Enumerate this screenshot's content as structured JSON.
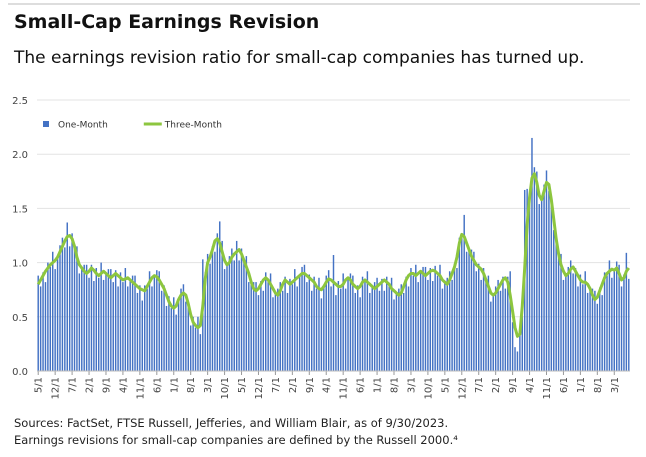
{
  "chart_data": {
    "type": "bar-line",
    "title": "Small-Cap Earnings Revision",
    "subtitle": "The earnings revision ratio for small-cap companies has turned up.",
    "notes": [
      "Sources: FactSet, FTSE Russell, Jefferies, and William Blair, as of 9/30/2023.",
      "Earnings revisions for small-cap companies are defined by the Russell 2000.⁴"
    ],
    "categories": [
      "5/1",
      null,
      null,
      null,
      null,
      null,
      null,
      "12/1",
      null,
      null,
      null,
      null,
      null,
      null,
      "7/1",
      null,
      null,
      null,
      null,
      null,
      null,
      "2/1",
      null,
      null,
      null,
      null,
      null,
      null,
      "9/1",
      null,
      null,
      null,
      null,
      null,
      null,
      "4/1",
      null,
      null,
      null,
      null,
      null,
      null,
      "11/1",
      null,
      null,
      null,
      null,
      null,
      null,
      "6/1",
      null,
      null,
      null,
      null,
      null,
      null,
      "1/1",
      null,
      null,
      null,
      null,
      null,
      null,
      "8/1",
      null,
      null,
      null,
      null,
      null,
      null,
      "3/1",
      null,
      null,
      null,
      null,
      null,
      null,
      "10/1",
      null,
      null,
      null,
      null,
      null,
      null,
      "5/1",
      null,
      null,
      null,
      null,
      null,
      null,
      "12/1",
      null,
      null,
      null,
      null,
      null,
      null,
      "7/1",
      null,
      null,
      null,
      null,
      null,
      null,
      "2/1",
      null,
      null,
      null,
      null,
      null,
      null,
      "9/1",
      null,
      null,
      null,
      null,
      null,
      null,
      "4/1",
      null,
      null,
      null,
      null,
      null,
      null,
      "11/1",
      null,
      null,
      null,
      null,
      null,
      null,
      "6/1",
      null,
      null,
      null,
      null,
      null,
      null,
      "1/1",
      null,
      null,
      null,
      null,
      null,
      null,
      "8/1",
      null,
      null,
      null,
      null,
      null,
      null,
      "3/1",
      null,
      null,
      null,
      null,
      null,
      null,
      "10/1",
      null,
      null,
      null,
      null,
      null,
      null,
      "5/1",
      null,
      null,
      null,
      null,
      null,
      null,
      "12/1",
      null,
      null,
      null,
      null,
      null,
      null,
      "7/1",
      null,
      null,
      null,
      null,
      null,
      null,
      "2/1",
      null,
      null,
      null,
      null,
      null,
      null,
      "9/1",
      null,
      null,
      null,
      null,
      null,
      null,
      "4/1",
      null,
      null,
      null,
      null,
      null,
      null,
      "11/1",
      null,
      null,
      null,
      null,
      null,
      null,
      "6/1",
      null,
      null,
      null,
      null,
      null,
      null,
      "1/1",
      null,
      null,
      null,
      null,
      null,
      null,
      "8/1",
      null,
      null,
      null,
      null,
      null,
      null,
      "3/1",
      null,
      null,
      null,
      null,
      null,
      null
    ],
    "series": [
      {
        "name": "One-Month",
        "type": "bar",
        "color": "#4472c4",
        "values": [
          0.88,
          0.78,
          0.91,
          0.82,
          1.0,
          0.96,
          1.1,
          0.94,
          1.05,
          1.16,
          1.23,
          1.14,
          1.37,
          1.15,
          1.27,
          1.13,
          1.15,
          0.9,
          0.95,
          0.98,
          0.98,
          0.86,
          0.98,
          0.83,
          0.95,
          0.86,
          1.0,
          0.84,
          0.9,
          0.94,
          0.94,
          0.82,
          0.93,
          0.78,
          0.91,
          0.82,
          0.95,
          0.78,
          0.84,
          0.88,
          0.88,
          0.72,
          0.79,
          0.65,
          0.79,
          0.76,
          0.92,
          0.78,
          0.88,
          0.93,
          0.92,
          0.74,
          0.79,
          0.6,
          0.69,
          0.58,
          0.68,
          0.52,
          0.66,
          0.76,
          0.8,
          0.64,
          0.65,
          0.42,
          0.5,
          0.4,
          0.5,
          0.34,
          1.03,
          0.91,
          1.08,
          0.99,
          1.15,
          1.1,
          1.27,
          1.38,
          1.2,
          0.94,
          0.98,
          1.06,
          1.13,
          1.02,
          1.2,
          1.02,
          1.13,
          1.0,
          1.06,
          0.82,
          0.82,
          0.82,
          0.82,
          0.7,
          0.83,
          0.74,
          0.91,
          0.82,
          0.9,
          0.68,
          0.72,
          0.76,
          0.82,
          0.74,
          0.87,
          0.72,
          0.85,
          0.8,
          0.94,
          0.78,
          0.88,
          0.96,
          0.98,
          0.82,
          0.89,
          0.74,
          0.87,
          0.76,
          0.86,
          0.67,
          0.78,
          0.88,
          0.93,
          0.78,
          1.07,
          0.7,
          0.83,
          0.76,
          0.9,
          0.76,
          0.86,
          0.9,
          0.88,
          0.72,
          0.79,
          0.68,
          0.87,
          0.82,
          0.92,
          0.72,
          0.78,
          0.82,
          0.86,
          0.74,
          0.85,
          0.74,
          0.87,
          0.78,
          0.86,
          0.66,
          0.72,
          0.76,
          0.8,
          0.72,
          0.87,
          0.78,
          0.95,
          0.88,
          0.98,
          0.82,
          0.92,
          0.96,
          0.96,
          0.84,
          0.95,
          0.83,
          0.97,
          0.88,
          0.98,
          0.76,
          0.82,
          0.86,
          0.92,
          0.84,
          0.99,
          0.95,
          1.23,
          1.24,
          1.44,
          1.1,
          1.12,
          1.12,
          1.1,
          0.92,
          0.99,
          0.84,
          0.95,
          0.82,
          0.88,
          0.64,
          0.7,
          0.78,
          0.84,
          0.74,
          0.87,
          0.76,
          0.87,
          0.92,
          0.45,
          0.22,
          0.18,
          0.4,
          0.68,
          1.67,
          1.68,
          1.6,
          2.15,
          1.88,
          1.84,
          1.54,
          1.58,
          1.72,
          1.85,
          1.66,
          1.61,
          1.3,
          1.27,
          1.06,
          1.08,
          0.84,
          0.88,
          0.96,
          1.02,
          0.9,
          0.95,
          0.78,
          0.89,
          0.8,
          0.92,
          0.72,
          0.76,
          0.76,
          0.74,
          0.62,
          0.77,
          0.7,
          0.91,
          0.88,
          1.02,
          0.86,
          0.93,
          1.01,
          0.98,
          0.78,
          0.89,
          1.09,
          0.85
        ]
      },
      {
        "name": "Three-Month",
        "type": "line",
        "color": "#8dc63f",
        "values": [
          0.8,
          0.84,
          0.88,
          0.92,
          0.95,
          0.98,
          1.0,
          1.02,
          1.05,
          1.1,
          1.15,
          1.2,
          1.24,
          1.25,
          1.22,
          1.15,
          1.05,
          0.98,
          0.95,
          0.92,
          0.9,
          0.92,
          0.95,
          0.93,
          0.9,
          0.88,
          0.9,
          0.92,
          0.9,
          0.88,
          0.86,
          0.88,
          0.9,
          0.88,
          0.86,
          0.84,
          0.85,
          0.86,
          0.84,
          0.82,
          0.8,
          0.78,
          0.76,
          0.75,
          0.74,
          0.78,
          0.82,
          0.86,
          0.88,
          0.87,
          0.84,
          0.8,
          0.76,
          0.7,
          0.64,
          0.6,
          0.58,
          0.6,
          0.66,
          0.7,
          0.72,
          0.7,
          0.62,
          0.52,
          0.45,
          0.42,
          0.4,
          0.42,
          0.6,
          0.85,
          1.0,
          1.05,
          1.12,
          1.2,
          1.22,
          1.18,
          1.1,
          1.02,
          0.98,
          1.0,
          1.05,
          1.08,
          1.1,
          1.12,
          1.08,
          1.02,
          0.96,
          0.9,
          0.82,
          0.76,
          0.74,
          0.76,
          0.8,
          0.84,
          0.86,
          0.84,
          0.8,
          0.76,
          0.72,
          0.7,
          0.74,
          0.8,
          0.84,
          0.82,
          0.8,
          0.82,
          0.84,
          0.86,
          0.88,
          0.9,
          0.9,
          0.88,
          0.86,
          0.84,
          0.82,
          0.78,
          0.76,
          0.75,
          0.78,
          0.82,
          0.85,
          0.84,
          0.82,
          0.8,
          0.78,
          0.78,
          0.8,
          0.84,
          0.86,
          0.84,
          0.8,
          0.78,
          0.76,
          0.78,
          0.82,
          0.84,
          0.82,
          0.8,
          0.78,
          0.76,
          0.78,
          0.8,
          0.82,
          0.84,
          0.82,
          0.8,
          0.76,
          0.74,
          0.72,
          0.7,
          0.72,
          0.78,
          0.84,
          0.88,
          0.9,
          0.9,
          0.88,
          0.9,
          0.92,
          0.9,
          0.88,
          0.9,
          0.92,
          0.93,
          0.92,
          0.9,
          0.88,
          0.84,
          0.82,
          0.8,
          0.84,
          0.9,
          0.96,
          1.05,
          1.18,
          1.26,
          1.24,
          1.18,
          1.12,
          1.06,
          1.02,
          0.98,
          0.96,
          0.94,
          0.9,
          0.84,
          0.78,
          0.72,
          0.7,
          0.72,
          0.76,
          0.8,
          0.84,
          0.86,
          0.82,
          0.7,
          0.55,
          0.4,
          0.32,
          0.34,
          0.6,
          0.95,
          1.35,
          1.6,
          1.78,
          1.82,
          1.74,
          1.62,
          1.58,
          1.66,
          1.74,
          1.72,
          1.58,
          1.4,
          1.22,
          1.08,
          0.98,
          0.92,
          0.88,
          0.9,
          0.94,
          0.96,
          0.92,
          0.88,
          0.84,
          0.82,
          0.82,
          0.8,
          0.76,
          0.7,
          0.66,
          0.68,
          0.74,
          0.8,
          0.86,
          0.9,
          0.92,
          0.94,
          0.93,
          0.95,
          0.9,
          0.84,
          0.86,
          0.92,
          0.95
        ]
      }
    ],
    "ylim": [
      0,
      2.5
    ],
    "yticks": [
      {
        "value": 0,
        "label": "0.0"
      },
      0.5,
      {
        "value": 1,
        "label": "1.0"
      },
      1.5,
      {
        "value": 2,
        "label": "2.0"
      },
      2.5
    ],
    "grid": true,
    "legend": "top-left"
  }
}
